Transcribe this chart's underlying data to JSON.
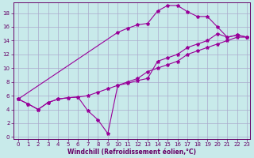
{
  "background_color": "#c8eaea",
  "grid_color": "#aaaacc",
  "line_color": "#990099",
  "xlabel": "Windchill (Refroidissement éolien,°C)",
  "xlabel_color": "#660066",
  "tick_color": "#660066",
  "xlim": [
    -0.5,
    23.3
  ],
  "ylim": [
    -0.3,
    19.5
  ],
  "xticks": [
    0,
    1,
    2,
    3,
    4,
    5,
    6,
    7,
    8,
    9,
    10,
    11,
    12,
    13,
    14,
    15,
    16,
    17,
    18,
    19,
    20,
    21,
    22,
    23
  ],
  "yticks": [
    0,
    2,
    4,
    6,
    8,
    10,
    12,
    14,
    16,
    18
  ],
  "line1_x": [
    0,
    1,
    2,
    3,
    4,
    5,
    6,
    7,
    8,
    9,
    10,
    11,
    12,
    13,
    14,
    15,
    16,
    17,
    18,
    19,
    20,
    21,
    22,
    23
  ],
  "line1_y": [
    5.5,
    4.8,
    4.0,
    5.0,
    5.5,
    5.7,
    5.8,
    3.8,
    2.5,
    0.5,
    7.5,
    7.8,
    8.2,
    8.5,
    11.0,
    11.5,
    12.0,
    13.0,
    13.5,
    14.0,
    15.0,
    14.5,
    14.8,
    14.5
  ],
  "line2_x": [
    0,
    10,
    11,
    12,
    13,
    14,
    15,
    16,
    17,
    18,
    19,
    20,
    21,
    22,
    23
  ],
  "line2_y": [
    5.5,
    15.2,
    15.8,
    16.3,
    16.5,
    18.3,
    19.1,
    19.1,
    18.2,
    17.5,
    17.5,
    16.0,
    14.5,
    14.8,
    14.5
  ],
  "line3_x": [
    0,
    1,
    2,
    3,
    4,
    5,
    6,
    7,
    8,
    9,
    10,
    11,
    12,
    13,
    14,
    15,
    16,
    17,
    18,
    19,
    20,
    21,
    22,
    23
  ],
  "line3_y": [
    5.5,
    4.8,
    4.0,
    5.0,
    5.5,
    5.7,
    5.8,
    6.0,
    6.5,
    7.0,
    7.5,
    8.0,
    8.5,
    9.5,
    10.0,
    10.5,
    11.0,
    12.0,
    12.5,
    13.0,
    13.5,
    14.0,
    14.5,
    14.5
  ]
}
